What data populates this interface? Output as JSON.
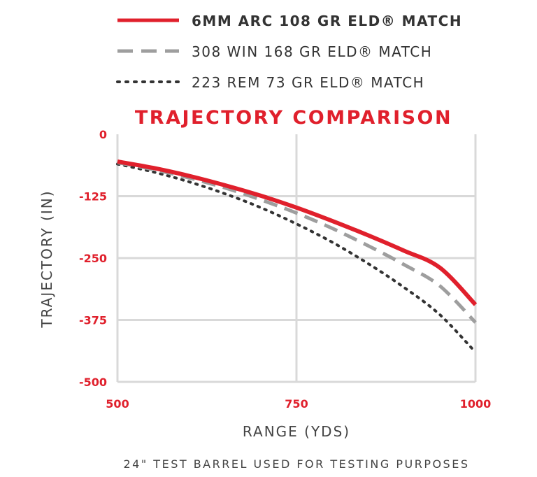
{
  "colors": {
    "accent": "#e0202c",
    "grid": "#d9d9d9",
    "series_gray": "#9e9e9e",
    "series_dark": "#333333"
  },
  "legend": {
    "items": [
      {
        "label": "6MM ARC 108 GR ELD® MATCH",
        "style": "solid",
        "color": "#e0202c"
      },
      {
        "label": "308 WIN 168 GR ELD® MATCH",
        "style": "dashed",
        "color": "#9e9e9e"
      },
      {
        "label": "223 REM 73 GR ELD® MATCH",
        "style": "dotted",
        "color": "#333333"
      }
    ]
  },
  "footnote": "24\" TEST BARREL USED FOR TESTING PURPOSES",
  "chart_data": {
    "type": "line",
    "title": "TRAJECTORY COMPARISON",
    "xlabel": "RANGE (YDS)",
    "ylabel": "TRAJECTORY (IN)",
    "xlim": [
      500,
      1000
    ],
    "ylim": [
      -500,
      0
    ],
    "x_ticks": [
      500,
      750,
      1000
    ],
    "y_ticks": [
      0,
      -125,
      -250,
      -375,
      -500
    ],
    "grid": true,
    "legend_position": "top",
    "x": [
      500,
      550,
      600,
      650,
      700,
      750,
      800,
      850,
      900,
      950,
      1000
    ],
    "series": [
      {
        "name": "6MM ARC 108 GR ELD® MATCH",
        "values": [
          -55,
          -68,
          -84,
          -103,
          -124,
          -148,
          -175,
          -204,
          -235,
          -269,
          -344
        ],
        "style": "solid",
        "color": "#e0202c"
      },
      {
        "name": "308 WIN 168 GR ELD® MATCH",
        "values": [
          -57,
          -71,
          -88,
          -108,
          -132,
          -159,
          -190,
          -225,
          -263,
          -306,
          -380
        ],
        "style": "dashed",
        "color": "#9e9e9e"
      },
      {
        "name": "223 REM 73 GR ELD® MATCH",
        "values": [
          -60,
          -76,
          -96,
          -120,
          -148,
          -181,
          -218,
          -261,
          -309,
          -364,
          -440
        ],
        "style": "dotted",
        "color": "#333333"
      }
    ]
  }
}
